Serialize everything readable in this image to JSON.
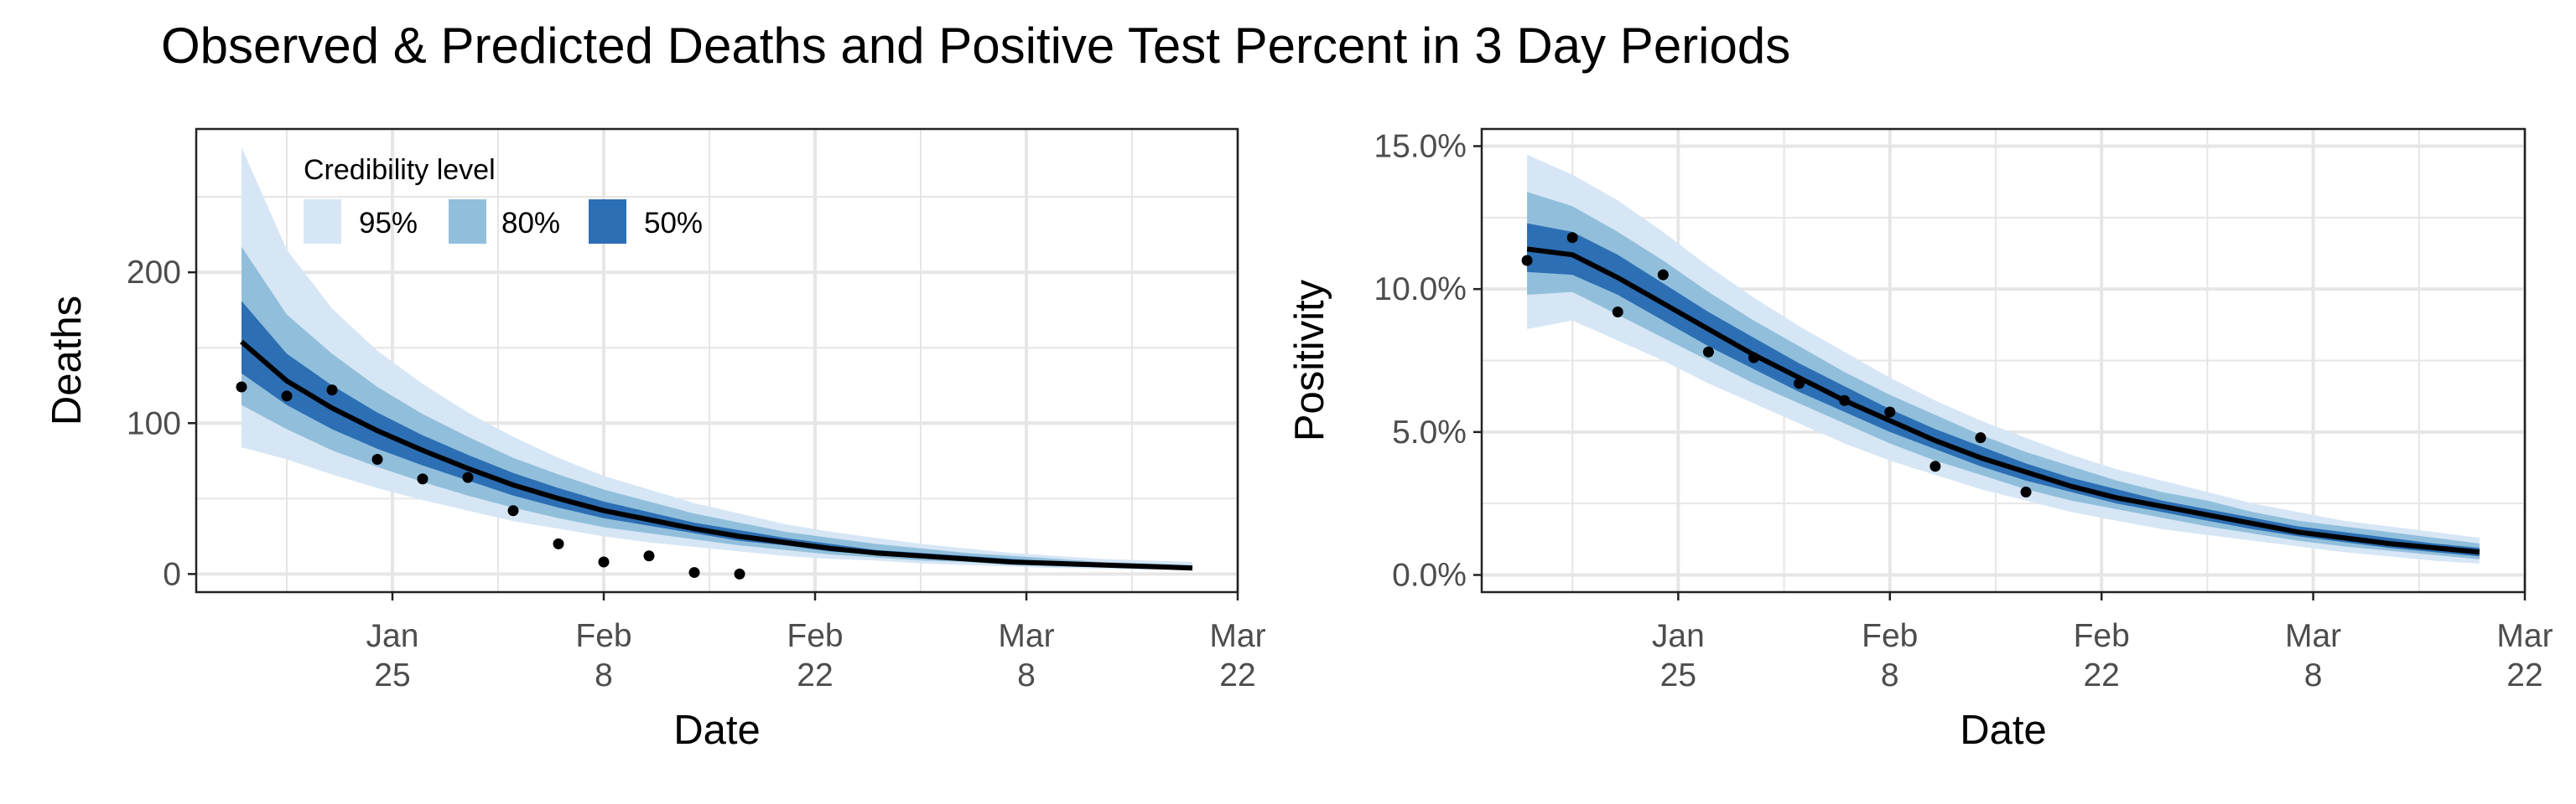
{
  "title": "Observed & Predicted Deaths and Positive Test Percent in 3 Day Periods",
  "legend": {
    "title": "Credibility level",
    "items": [
      {
        "label": "95%",
        "color": "#d6e6f5"
      },
      {
        "label": "80%",
        "color": "#91bfdb"
      },
      {
        "label": "50%",
        "color": "#2c6fb4"
      }
    ]
  },
  "colors": {
    "band95": "#d6e6f5",
    "band80": "#91bfdb",
    "band50": "#2c6fb4",
    "median": "#000000",
    "points": "#000000",
    "grid": "#e6e6e6",
    "frame": "#222222"
  },
  "chart_data": [
    {
      "type": "area",
      "xlabel": "Date",
      "ylabel": "Deaths",
      "x_ticks": [
        {
          "value": "2021-01-25",
          "line1": "Jan",
          "line2": "25"
        },
        {
          "value": "2021-02-08",
          "line1": "Feb",
          "line2": "8"
        },
        {
          "value": "2021-02-22",
          "line1": "Feb",
          "line2": "22"
        },
        {
          "value": "2021-03-08",
          "line1": "Mar",
          "line2": "8"
        },
        {
          "value": "2021-03-22",
          "line1": "Mar",
          "line2": "22"
        }
      ],
      "y_ticks": [
        {
          "value": 0,
          "label": "0"
        },
        {
          "value": 100,
          "label": "100"
        },
        {
          "value": 200,
          "label": "200"
        }
      ],
      "xlim": [
        "2021-01-12",
        "2021-03-22"
      ],
      "ylim": [
        -12,
        295
      ],
      "dates": [
        "2021-01-15",
        "2021-01-18",
        "2021-01-21",
        "2021-01-24",
        "2021-01-27",
        "2021-01-30",
        "2021-02-02",
        "2021-02-05",
        "2021-02-08",
        "2021-02-11",
        "2021-02-14",
        "2021-02-17",
        "2021-02-20",
        "2021-02-23",
        "2021-02-26",
        "2021-03-01",
        "2021-03-04",
        "2021-03-07",
        "2021-03-10",
        "2021-03-13",
        "2021-03-16",
        "2021-03-19"
      ],
      "median": [
        154,
        128,
        110,
        95,
        82,
        70,
        59,
        50,
        42,
        36,
        30,
        25,
        21,
        17,
        14,
        12,
        10,
        8,
        7,
        6,
        5,
        4
      ],
      "lower50": [
        133,
        112,
        96,
        83,
        72,
        62,
        52,
        44,
        37,
        32,
        27,
        22,
        19,
        15,
        13,
        11,
        9,
        7,
        6,
        5,
        4,
        3.5
      ],
      "upper50": [
        181,
        146,
        125,
        107,
        92,
        79,
        67,
        57,
        48,
        41,
        34,
        29,
        24,
        20,
        16,
        14,
        12,
        10,
        8,
        7,
        6,
        5
      ],
      "lower80": [
        112,
        96,
        82,
        71,
        61,
        52,
        44,
        37,
        31,
        27,
        23,
        19,
        16,
        13,
        11,
        9,
        8,
        6,
        5,
        4.5,
        4,
        3
      ],
      "upper80": [
        217,
        172,
        146,
        124,
        106,
        91,
        77,
        66,
        56,
        48,
        40,
        34,
        28,
        24,
        20,
        17,
        14,
        12,
        10,
        8,
        7,
        6
      ],
      "lower95": [
        84,
        76,
        66,
        57,
        49,
        42,
        35,
        30,
        25,
        21,
        18,
        15,
        12,
        10,
        9,
        7,
        6,
        5,
        4,
        3.5,
        3,
        2.5
      ],
      "upper95": [
        283,
        215,
        176,
        148,
        126,
        107,
        91,
        77,
        65,
        56,
        47,
        40,
        33,
        28,
        24,
        20,
        17,
        14,
        12,
        10,
        9,
        8
      ],
      "observed": {
        "dates": [
          "2021-01-15",
          "2021-01-18",
          "2021-01-21",
          "2021-01-24",
          "2021-01-27",
          "2021-01-30",
          "2021-02-02",
          "2021-02-05",
          "2021-02-08",
          "2021-02-11",
          "2021-02-14",
          "2021-02-17"
        ],
        "values": [
          124,
          118,
          122,
          76,
          63,
          64,
          42,
          20,
          8,
          12,
          1,
          0
        ]
      }
    },
    {
      "type": "area",
      "xlabel": "Date",
      "ylabel": "Positivity",
      "x_ticks": [
        {
          "value": "2021-01-25",
          "line1": "Jan",
          "line2": "25"
        },
        {
          "value": "2021-02-08",
          "line1": "Feb",
          "line2": "8"
        },
        {
          "value": "2021-02-22",
          "line1": "Feb",
          "line2": "22"
        },
        {
          "value": "2021-03-08",
          "line1": "Mar",
          "line2": "8"
        },
        {
          "value": "2021-03-22",
          "line1": "Mar",
          "line2": "22"
        }
      ],
      "y_ticks": [
        {
          "value": 0,
          "label": "0.0%"
        },
        {
          "value": 5,
          "label": "5.0%"
        },
        {
          "value": 10,
          "label": "10.0%"
        },
        {
          "value": 15,
          "label": "15.0%"
        }
      ],
      "xlim": [
        "2021-01-12",
        "2021-03-22"
      ],
      "ylim": [
        -0.6,
        15.6
      ],
      "dates": [
        "2021-01-15",
        "2021-01-18",
        "2021-01-21",
        "2021-01-24",
        "2021-01-27",
        "2021-01-30",
        "2021-02-02",
        "2021-02-05",
        "2021-02-08",
        "2021-02-11",
        "2021-02-14",
        "2021-02-17",
        "2021-02-20",
        "2021-02-23",
        "2021-02-26",
        "2021-03-01",
        "2021-03-04",
        "2021-03-07",
        "2021-03-10",
        "2021-03-13",
        "2021-03-16",
        "2021-03-19"
      ],
      "median": [
        11.4,
        11.2,
        10.4,
        9.5,
        8.6,
        7.7,
        6.9,
        6.1,
        5.4,
        4.7,
        4.1,
        3.6,
        3.1,
        2.7,
        2.4,
        2.1,
        1.8,
        1.5,
        1.3,
        1.1,
        0.95,
        0.8
      ],
      "lower50": [
        10.6,
        10.5,
        9.8,
        8.9,
        8.0,
        7.2,
        6.4,
        5.7,
        5.0,
        4.4,
        3.8,
        3.3,
        2.9,
        2.5,
        2.2,
        1.9,
        1.6,
        1.35,
        1.15,
        0.95,
        0.8,
        0.65
      ],
      "upper50": [
        12.3,
        12.0,
        11.2,
        10.2,
        9.2,
        8.3,
        7.4,
        6.6,
        5.8,
        5.1,
        4.5,
        3.9,
        3.4,
        3.0,
        2.6,
        2.3,
        2.0,
        1.7,
        1.5,
        1.3,
        1.1,
        0.95
      ],
      "lower80": [
        9.8,
        9.9,
        9.1,
        8.3,
        7.5,
        6.7,
        6.0,
        5.3,
        4.6,
        4.0,
        3.5,
        3.0,
        2.6,
        2.3,
        2.0,
        1.7,
        1.45,
        1.2,
        1.0,
        0.85,
        0.7,
        0.55
      ],
      "upper80": [
        13.4,
        12.9,
        12.0,
        11.0,
        9.9,
        8.9,
        8.0,
        7.1,
        6.3,
        5.6,
        4.9,
        4.3,
        3.8,
        3.3,
        2.9,
        2.6,
        2.2,
        1.9,
        1.7,
        1.5,
        1.3,
        1.1
      ],
      "lower95": [
        8.6,
        8.9,
        8.2,
        7.5,
        6.7,
        6.0,
        5.3,
        4.6,
        4.0,
        3.5,
        3.0,
        2.6,
        2.2,
        1.9,
        1.6,
        1.4,
        1.2,
        1.0,
        0.8,
        0.65,
        0.5,
        0.4
      ],
      "upper95": [
        14.7,
        14.0,
        13.1,
        12.0,
        10.8,
        9.7,
        8.7,
        7.8,
        6.9,
        6.1,
        5.4,
        4.8,
        4.2,
        3.7,
        3.3,
        2.9,
        2.5,
        2.2,
        1.9,
        1.7,
        1.5,
        1.3
      ],
      "observed": {
        "dates": [
          "2021-01-15",
          "2021-01-18",
          "2021-01-21",
          "2021-01-24",
          "2021-01-27",
          "2021-01-30",
          "2021-02-02",
          "2021-02-05",
          "2021-02-08",
          "2021-02-11",
          "2021-02-14",
          "2021-02-17"
        ],
        "values": [
          11.0,
          11.8,
          9.2,
          10.5,
          7.8,
          7.6,
          6.7,
          6.1,
          5.7,
          3.8,
          4.8,
          2.9
        ]
      }
    }
  ]
}
